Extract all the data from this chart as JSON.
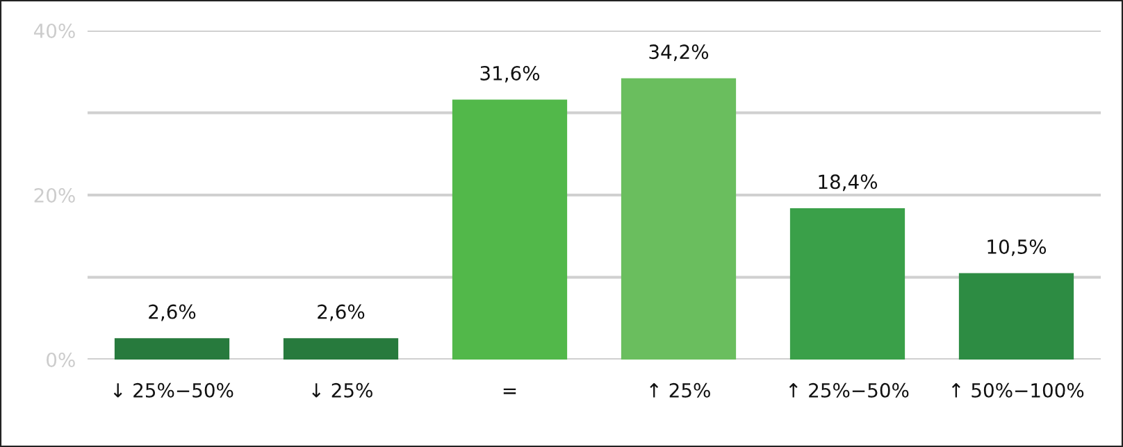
{
  "chart_data": {
    "type": "bar",
    "categories": [
      "↓ 25%−50%",
      "↓ 25%",
      "=",
      "↑ 25%",
      "↑ 25%−50%",
      "↑ 50%−100%"
    ],
    "values": [
      2.6,
      2.6,
      31.6,
      34.2,
      18.4,
      10.5
    ],
    "colors": [
      "#277a3d",
      "#277a3d",
      "#52b84a",
      "#6abe5e",
      "#3aa049",
      "#2d8c43"
    ],
    "value_labels": [
      "2,6%",
      "2,6%",
      "31,6%",
      "34,2%",
      "18,4%",
      "10,5%"
    ],
    "ylim": [
      0,
      40
    ],
    "yticks": [
      {
        "value": 0,
        "label": "0%"
      },
      {
        "value": 10,
        "label": null
      },
      {
        "value": 20,
        "label": "20%"
      },
      {
        "value": 30,
        "label": null
      },
      {
        "value": 40,
        "label": "40%"
      }
    ],
    "grid": "y"
  }
}
